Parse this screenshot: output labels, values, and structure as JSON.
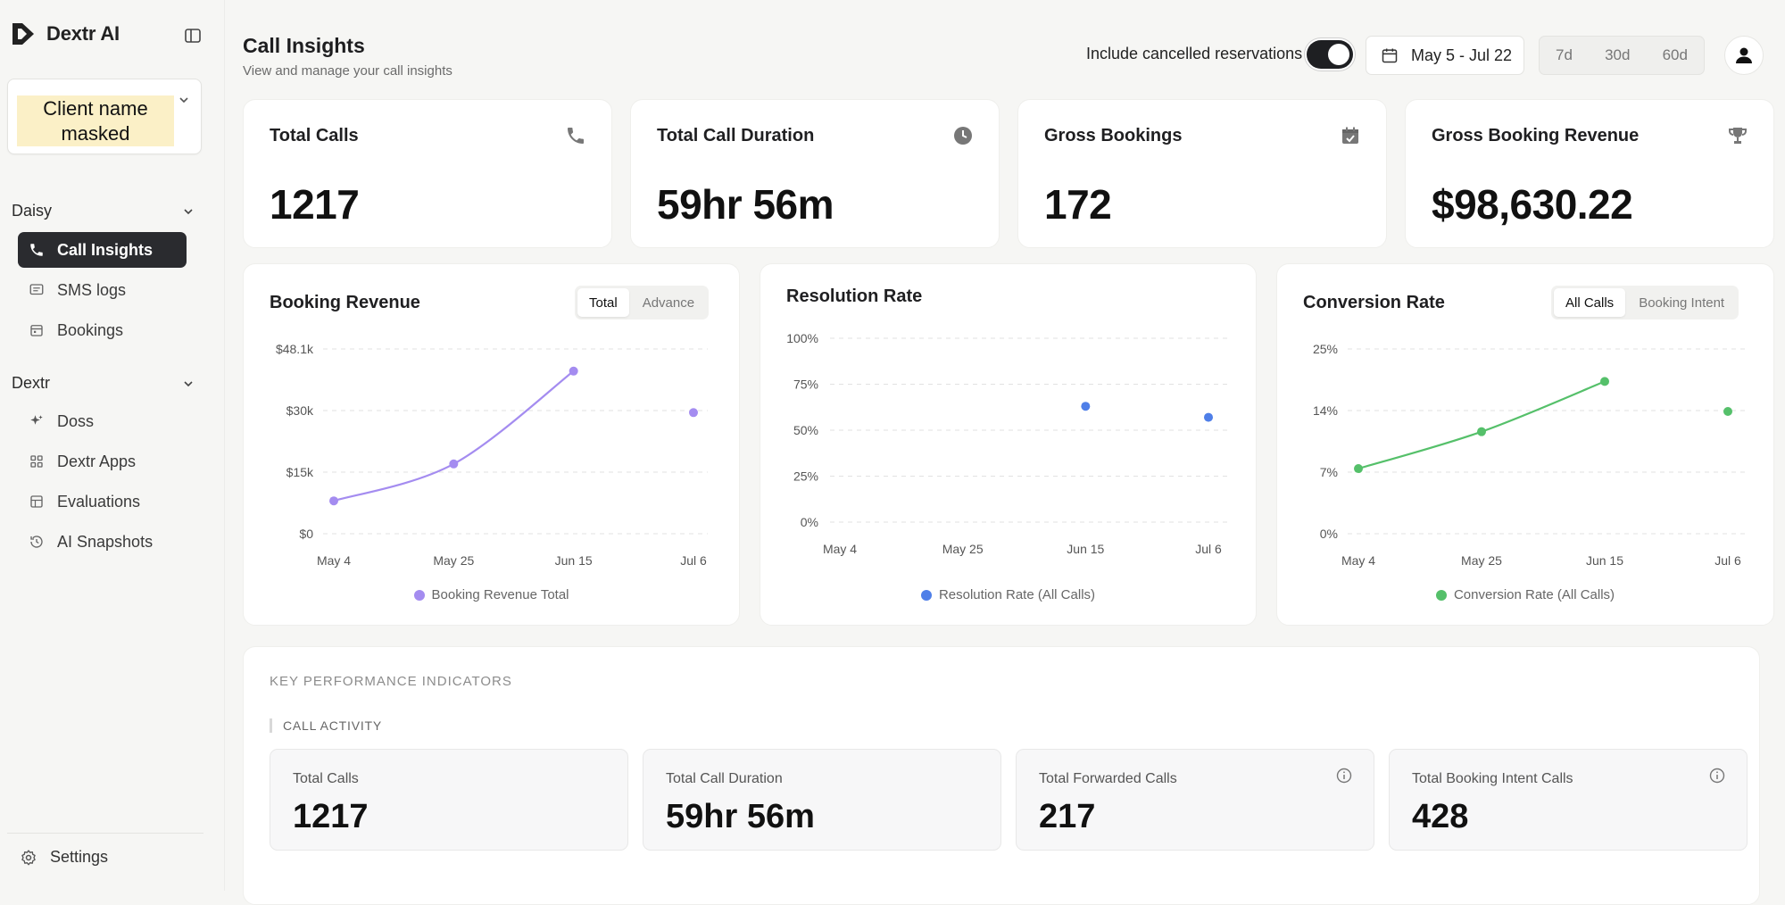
{
  "brand": {
    "name": "Dextr AI"
  },
  "client": {
    "name": "Client name masked"
  },
  "sidebar": {
    "sections": [
      {
        "title": "Daisy",
        "items": [
          {
            "label": "Call Insights",
            "icon": "phone-icon",
            "active": true
          },
          {
            "label": "SMS logs",
            "icon": "message-icon"
          },
          {
            "label": "Bookings",
            "icon": "calendar-icon"
          }
        ]
      },
      {
        "title": "Dextr",
        "items": [
          {
            "label": "Doss",
            "icon": "sparkle-icon"
          },
          {
            "label": "Dextr Apps",
            "icon": "apps-grid-icon"
          },
          {
            "label": "Evaluations",
            "icon": "table-icon"
          },
          {
            "label": "AI Snapshots",
            "icon": "history-icon"
          }
        ]
      }
    ],
    "settings_label": "Settings"
  },
  "header": {
    "title": "Call Insights",
    "subtitle": "View and manage your call insights",
    "toggle_label": "Include cancelled reservations",
    "toggle_on": true,
    "date_range": "May 5 - Jul 22",
    "ranges": [
      "7d",
      "30d",
      "60d"
    ]
  },
  "stats": [
    {
      "title": "Total Calls",
      "value": "1217",
      "icon": "phone-icon"
    },
    {
      "title": "Total Call Duration",
      "value": "59hr 56m",
      "icon": "clock-icon"
    },
    {
      "title": "Gross Bookings",
      "value": "172",
      "icon": "calendar-check-icon"
    },
    {
      "title": "Gross Booking Revenue",
      "value": "$98,630.22",
      "icon": "trophy-icon"
    }
  ],
  "chart_data": [
    {
      "type": "line",
      "title": "Booking Revenue",
      "toggle": [
        "Total",
        "Advance"
      ],
      "toggle_active": "Total",
      "x": [
        "May 4",
        "May 25",
        "Jun 15",
        "Jul 6"
      ],
      "ytick_labels": [
        "$0",
        "$15k",
        "$30k",
        "$48.1k"
      ],
      "ytick_values": [
        0,
        15000,
        30000,
        48100
      ],
      "ylim": [
        0,
        48100
      ],
      "series": [
        {
          "name": "Booking Revenue Total",
          "values": [
            8000,
            17000,
            41600,
            29500
          ],
          "color": "#a48cf0"
        }
      ],
      "connected_points": 3,
      "grid": true,
      "legend": "bottom-center"
    },
    {
      "type": "scatter",
      "title": "Resolution Rate",
      "x": [
        "May 4",
        "May 25",
        "Jun 15",
        "Jul 6"
      ],
      "ytick_labels": [
        "0%",
        "25%",
        "50%",
        "75%",
        "100%"
      ],
      "ytick_values": [
        0,
        25,
        50,
        75,
        100
      ],
      "ylim": [
        0,
        100
      ],
      "series": [
        {
          "name": "Resolution Rate (All Calls)",
          "values": [
            null,
            null,
            63,
            57
          ],
          "color": "#4f7fe8"
        }
      ],
      "grid": true,
      "legend": "bottom-center"
    },
    {
      "type": "line",
      "title": "Conversion Rate",
      "toggle": [
        "All Calls",
        "Booking Intent"
      ],
      "toggle_active": "All Calls",
      "x": [
        "May 4",
        "May 25",
        "Jun 15",
        "Jul 6"
      ],
      "ytick_labels": [
        "0%",
        "7%",
        "14%",
        "25%"
      ],
      "ytick_values": [
        0,
        7,
        14,
        25
      ],
      "ylim": [
        0,
        25
      ],
      "series": [
        {
          "name": "Conversion Rate (All Calls)",
          "values": [
            7.4,
            11.6,
            19.2,
            13.9
          ],
          "color": "#55c06a"
        }
      ],
      "connected_points": 3,
      "grid": true,
      "legend": "bottom-center"
    }
  ],
  "kpi": {
    "heading": "KEY PERFORMANCE INDICATORS",
    "section": "CALL ACTIVITY",
    "cards": [
      {
        "label": "Total Calls",
        "value": "1217",
        "info": false
      },
      {
        "label": "Total Call Duration",
        "value": "59hr 56m",
        "info": false
      },
      {
        "label": "Total Forwarded Calls",
        "value": "217",
        "info": true
      },
      {
        "label": "Total Booking Intent Calls",
        "value": "428",
        "info": true
      }
    ]
  }
}
